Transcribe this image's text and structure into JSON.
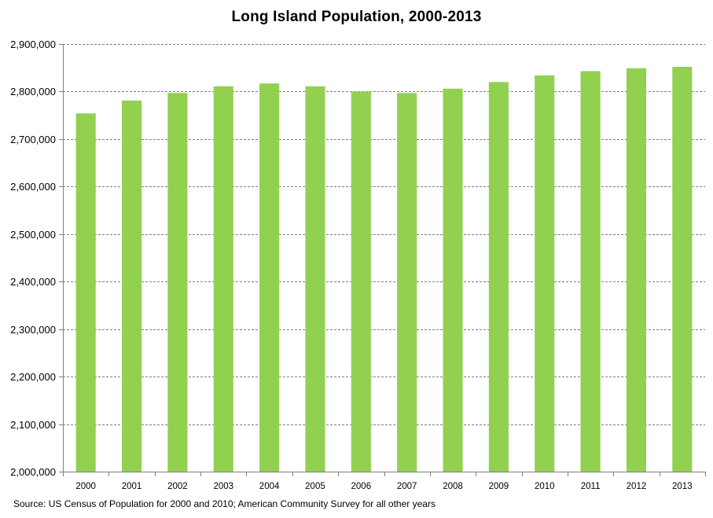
{
  "chart_data": {
    "type": "bar",
    "title": "Long Island Population, 2000-2013",
    "source_note": "Source: US Census of Population for 2000 and 2010; American Community Survey for all other years",
    "xlabel": "",
    "ylabel": "",
    "categories": [
      "2000",
      "2001",
      "2002",
      "2003",
      "2004",
      "2005",
      "2006",
      "2007",
      "2008",
      "2009",
      "2010",
      "2011",
      "2012",
      "2013"
    ],
    "values": [
      2754000,
      2781000,
      2797000,
      2811000,
      2817000,
      2811000,
      2800000,
      2797000,
      2806000,
      2820000,
      2834000,
      2843000,
      2849000,
      2852000
    ],
    "ylim": [
      2000000,
      2900000
    ],
    "yticks": [
      2000000,
      2100000,
      2200000,
      2300000,
      2400000,
      2500000,
      2600000,
      2700000,
      2800000,
      2900000
    ],
    "ytick_labels": [
      "2,000,000",
      "2,100,000",
      "2,200,000",
      "2,300,000",
      "2,400,000",
      "2,500,000",
      "2,600,000",
      "2,700,000",
      "2,800,000",
      "2,900,000"
    ],
    "bar_color": "#92D050",
    "grid": true,
    "legend": "none"
  }
}
